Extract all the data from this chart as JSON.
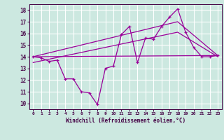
{
  "background_color": "#cce8e0",
  "grid_color": "#ffffff",
  "line_color": "#990099",
  "xlabel": "Windchill (Refroidissement éolien,°C)",
  "xlabel_color": "#440044",
  "tick_color": "#440044",
  "ylim": [
    9.5,
    18.5
  ],
  "xlim": [
    -0.5,
    23.5
  ],
  "yticks": [
    10,
    11,
    12,
    13,
    14,
    15,
    16,
    17,
    18
  ],
  "xticks": [
    0,
    1,
    2,
    3,
    4,
    5,
    6,
    7,
    8,
    9,
    10,
    11,
    12,
    13,
    14,
    15,
    16,
    17,
    18,
    19,
    20,
    21,
    22,
    23
  ],
  "series1_x": [
    0,
    1,
    2,
    3,
    4,
    5,
    6,
    7,
    8,
    9,
    10,
    11,
    12,
    13,
    14,
    15,
    16,
    17,
    18,
    19,
    20,
    21,
    22,
    23
  ],
  "series1_y": [
    14.0,
    13.9,
    13.6,
    13.7,
    12.1,
    12.1,
    11.0,
    10.9,
    9.9,
    13.0,
    13.2,
    15.9,
    16.6,
    13.5,
    15.6,
    15.5,
    16.6,
    17.4,
    18.1,
    16.1,
    14.8,
    14.0,
    14.0,
    14.1
  ],
  "trend1_x": [
    0,
    23
  ],
  "trend1_y": [
    14.0,
    14.1
  ],
  "trend2_x": [
    0,
    18,
    23
  ],
  "trend2_y": [
    14.0,
    17.0,
    14.1
  ],
  "trend3_x": [
    0,
    18,
    23
  ],
  "trend3_y": [
    13.5,
    16.1,
    14.0
  ]
}
